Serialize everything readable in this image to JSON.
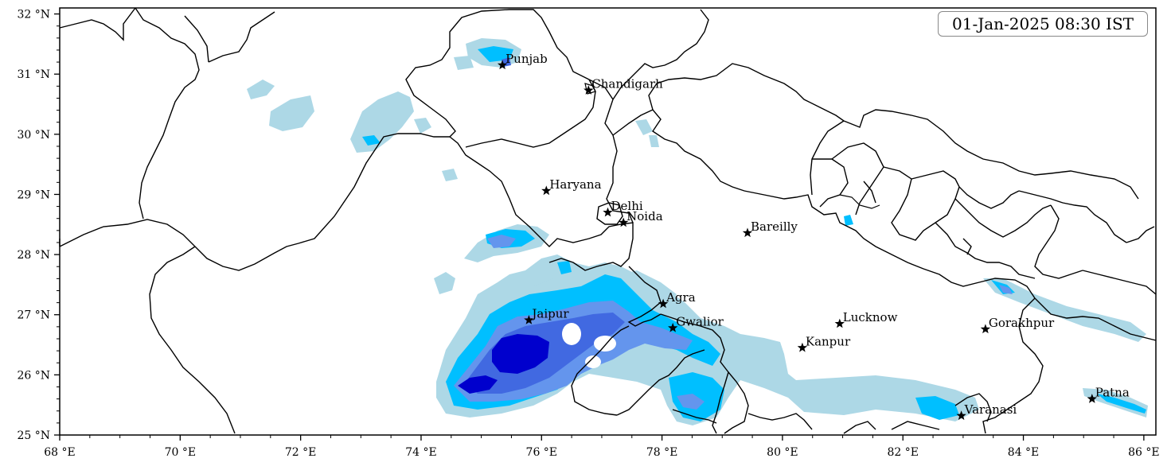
{
  "timestamp": "01-Jan-2025 08:30 IST",
  "map": {
    "lon_range": [
      68,
      86.2
    ],
    "lat_range": [
      25,
      32.1
    ],
    "x_ticks": [
      {
        "value": 68,
        "label": "68 °E"
      },
      {
        "value": 70,
        "label": "70 °E"
      },
      {
        "value": 72,
        "label": "72 °E"
      },
      {
        "value": 74,
        "label": "74 °E"
      },
      {
        "value": 76,
        "label": "76 °E"
      },
      {
        "value": 78,
        "label": "78 °E"
      },
      {
        "value": 80,
        "label": "80 °E"
      },
      {
        "value": 82,
        "label": "82 °E"
      },
      {
        "value": 84,
        "label": "84 °E"
      },
      {
        "value": 86,
        "label": "86 °E"
      }
    ],
    "y_ticks": [
      {
        "value": 25,
        "label": "25 °N"
      },
      {
        "value": 26,
        "label": "26 °N"
      },
      {
        "value": 27,
        "label": "27 °N"
      },
      {
        "value": 28,
        "label": "28 °N"
      },
      {
        "value": 29,
        "label": "29 °N"
      },
      {
        "value": 30,
        "label": "30 °N"
      },
      {
        "value": 31,
        "label": "31 °N"
      },
      {
        "value": 32,
        "label": "32 °N"
      }
    ]
  },
  "cities": [
    {
      "name": "Punjab",
      "lon": 75.35,
      "lat": 31.15
    },
    {
      "name": "Chandigarh",
      "lon": 76.78,
      "lat": 30.73
    },
    {
      "name": "Haryana",
      "lon": 76.08,
      "lat": 29.06
    },
    {
      "name": "Delhi",
      "lon": 77.1,
      "lat": 28.7
    },
    {
      "name": "Noida",
      "lon": 77.36,
      "lat": 28.53
    },
    {
      "name": "Bareilly",
      "lon": 79.42,
      "lat": 28.36
    },
    {
      "name": "Agra",
      "lon": 78.02,
      "lat": 27.18
    },
    {
      "name": "Jaipur",
      "lon": 75.79,
      "lat": 26.91
    },
    {
      "name": "Gwalior",
      "lon": 78.18,
      "lat": 26.78
    },
    {
      "name": "Lucknow",
      "lon": 80.95,
      "lat": 26.85
    },
    {
      "name": "Kanpur",
      "lon": 80.33,
      "lat": 26.45
    },
    {
      "name": "Gorakhpur",
      "lon": 83.37,
      "lat": 26.76
    },
    {
      "name": "Varanasi",
      "lon": 82.97,
      "lat": 25.32
    },
    {
      "name": "Patna",
      "lon": 85.14,
      "lat": 25.6
    }
  ],
  "colors": {
    "light": "#add8e6",
    "cyan": "#00bfff",
    "medium": "#6495ed",
    "royal": "#4169e1",
    "dark": "#0000cd",
    "boundary": "#000000"
  }
}
